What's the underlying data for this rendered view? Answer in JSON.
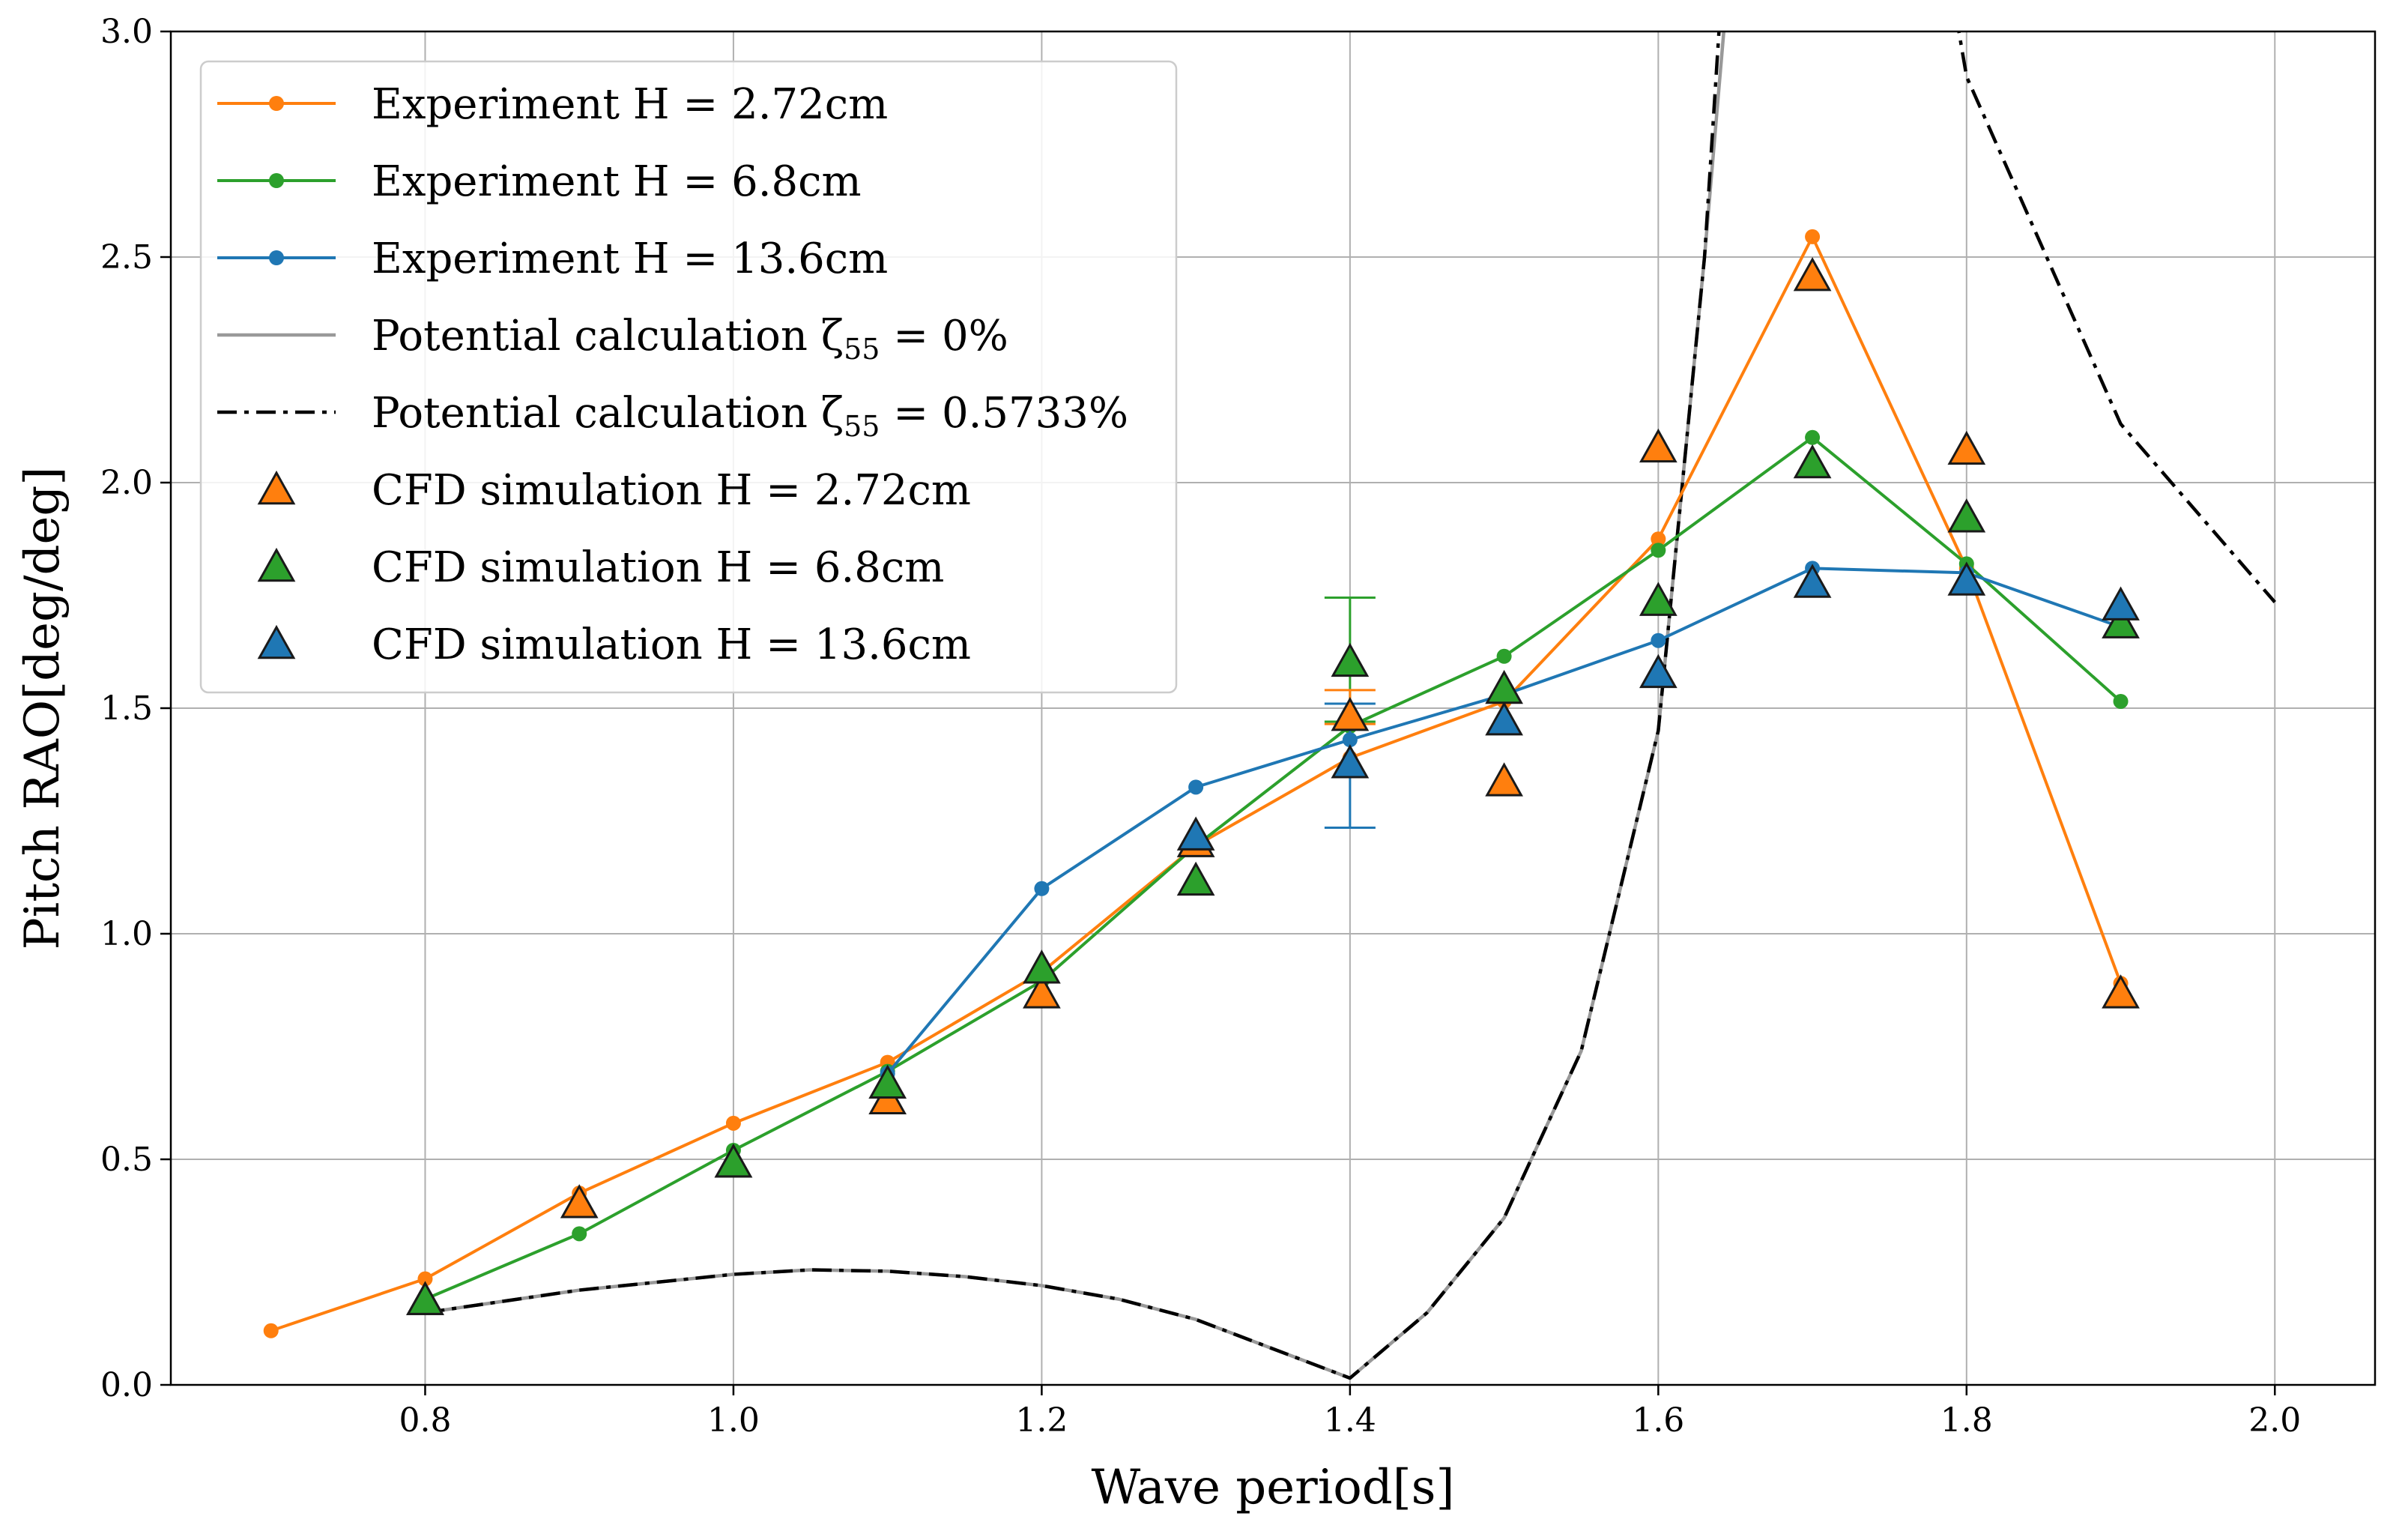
{
  "chart_data": {
    "type": "line",
    "title": "",
    "xlabel": "Wave period[s]",
    "ylabel": "Pitch RAO[deg/deg]",
    "xlim": [
      0.635,
      2.065
    ],
    "ylim": [
      0.0,
      3.0
    ],
    "grid": true,
    "legend_position": "top-left",
    "xticks": [
      0.8,
      1.0,
      1.2,
      1.4,
      1.6,
      1.8,
      2.0
    ],
    "xtick_labels": [
      "0.8",
      "1.0",
      "1.2",
      "1.4",
      "1.6",
      "1.8",
      "2.0"
    ],
    "yticks": [
      0.0,
      0.5,
      1.0,
      1.5,
      2.0,
      2.5,
      3.0
    ],
    "ytick_labels": [
      "0.0",
      "0.5",
      "1.0",
      "1.5",
      "2.0",
      "2.5",
      "3.0"
    ],
    "series": [
      {
        "name": "Experiment H = 2.72cm",
        "kind": "line-marker",
        "color": "#ff7f0e",
        "x": [
          0.7,
          0.8,
          0.9,
          1.0,
          1.1,
          1.2,
          1.3,
          1.4,
          1.5,
          1.6,
          1.7,
          1.8,
          1.9
        ],
        "y": [
          0.12,
          0.235,
          0.425,
          0.58,
          0.715,
          0.915,
          1.195,
          1.39,
          1.515,
          1.875,
          2.545,
          1.81,
          0.89
        ]
      },
      {
        "name": "Experiment H = 6.8cm",
        "kind": "line-marker",
        "color": "#2ca02c",
        "x": [
          0.8,
          0.9,
          1.0,
          1.1,
          1.2,
          1.3,
          1.4,
          1.5,
          1.6,
          1.7,
          1.8,
          1.9
        ],
        "y": [
          0.19,
          0.335,
          0.52,
          0.695,
          0.895,
          1.195,
          1.46,
          1.615,
          1.85,
          2.1,
          1.82,
          1.515
        ]
      },
      {
        "name": "Experiment H = 13.6cm",
        "kind": "line-marker",
        "color": "#1f77b4",
        "x": [
          1.1,
          1.2,
          1.3,
          1.4,
          1.5,
          1.6,
          1.7,
          1.8,
          1.9
        ],
        "y": [
          0.69,
          1.1,
          1.325,
          1.43,
          1.53,
          1.65,
          1.81,
          1.8,
          1.68
        ]
      },
      {
        "name": "Potential calculation ζ55 = 0%",
        "kind": "line",
        "color": "#999999",
        "x": [
          0.8,
          0.9,
          1.0,
          1.05,
          1.1,
          1.15,
          1.2,
          1.25,
          1.3,
          1.35,
          1.4,
          1.45,
          1.5,
          1.55,
          1.6,
          1.63,
          1.65
        ],
        "y": [
          0.16,
          0.21,
          0.245,
          0.255,
          0.252,
          0.24,
          0.22,
          0.19,
          0.145,
          0.08,
          0.015,
          0.16,
          0.37,
          0.74,
          1.45,
          2.5,
          3.3
        ]
      },
      {
        "name": "Potential calculation ζ55 = 0.5733%",
        "kind": "line-dashdot",
        "color": "#000000",
        "x": [
          0.8,
          0.9,
          1.0,
          1.05,
          1.1,
          1.15,
          1.2,
          1.25,
          1.3,
          1.35,
          1.4,
          1.45,
          1.5,
          1.55,
          1.6,
          1.63,
          1.645,
          1.78,
          1.8,
          1.9,
          2.0
        ],
        "y": [
          0.16,
          0.21,
          0.245,
          0.255,
          0.252,
          0.24,
          0.22,
          0.19,
          0.145,
          0.08,
          0.015,
          0.16,
          0.37,
          0.74,
          1.45,
          2.5,
          3.3,
          3.3,
          2.9,
          2.13,
          1.735
        ]
      },
      {
        "name": "CFD simulation H = 2.72cm",
        "kind": "triangle",
        "color": "#ff7f0e",
        "x": [
          0.8,
          0.9,
          1.0,
          1.1,
          1.2,
          1.3,
          1.4,
          1.5,
          1.6,
          1.7,
          1.8,
          1.9
        ],
        "y": [
          0.185,
          0.4,
          0.49,
          0.63,
          0.865,
          1.2,
          1.48,
          1.335,
          2.075,
          2.455,
          2.07,
          0.865
        ]
      },
      {
        "name": "CFD simulation H = 6.8cm",
        "kind": "triangle",
        "color": "#2ca02c",
        "x": [
          0.8,
          1.0,
          1.1,
          1.2,
          1.3,
          1.4,
          1.5,
          1.6,
          1.7,
          1.8,
          1.9
        ],
        "y": [
          0.185,
          0.49,
          0.665,
          0.92,
          1.115,
          1.6,
          1.54,
          1.735,
          2.04,
          1.92,
          1.685
        ]
      },
      {
        "name": "CFD simulation H = 13.6cm",
        "kind": "triangle",
        "color": "#1f77b4",
        "x": [
          1.3,
          1.4,
          1.5,
          1.6,
          1.7,
          1.8,
          1.9
        ],
        "y": [
          1.215,
          1.375,
          1.47,
          1.575,
          1.775,
          1.78,
          1.725
        ]
      }
    ],
    "error_bars": [
      {
        "series": "CFD simulation H = 6.8cm",
        "x": 1.4,
        "low": 1.47,
        "high": 1.745,
        "color": "#2ca02c"
      },
      {
        "series": "CFD simulation H = 2.72cm",
        "x": 1.4,
        "low": 1.465,
        "high": 1.54,
        "color": "#ff7f0e"
      },
      {
        "series": "CFD simulation H = 13.6cm",
        "x": 1.4,
        "low": 1.235,
        "high": 1.51,
        "color": "#1f77b4"
      }
    ],
    "legend": [
      {
        "prefix": "Experiment H = 2.72cm",
        "sub": "",
        "suffix": ""
      },
      {
        "prefix": "Experiment H = 6.8cm",
        "sub": "",
        "suffix": ""
      },
      {
        "prefix": "Experiment H = 13.6cm",
        "sub": "",
        "suffix": ""
      },
      {
        "prefix": "Potential calculation ζ",
        "sub": "55",
        "suffix": " = 0%"
      },
      {
        "prefix": "Potential calculation ζ",
        "sub": "55",
        "suffix": " = 0.5733%"
      },
      {
        "prefix": "CFD simulation H = 2.72cm",
        "sub": "",
        "suffix": ""
      },
      {
        "prefix": "CFD simulation H = 6.8cm",
        "sub": "",
        "suffix": ""
      },
      {
        "prefix": "CFD simulation H = 13.6cm",
        "sub": "",
        "suffix": ""
      }
    ]
  }
}
